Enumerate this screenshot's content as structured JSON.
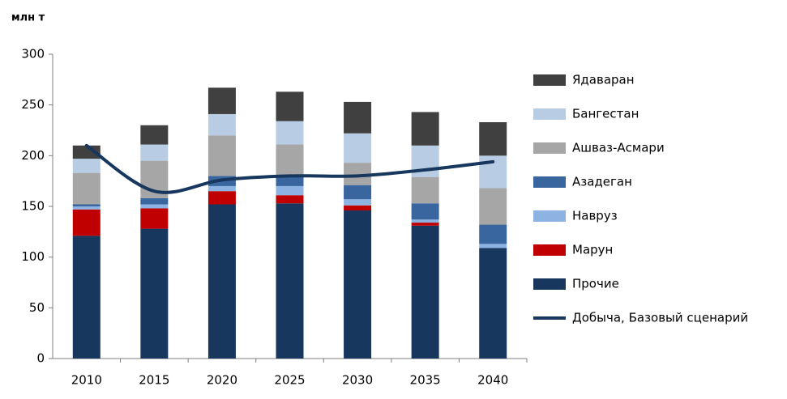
{
  "chart_data": {
    "type": "stacked-bar-line",
    "y_label": "млн т",
    "categories": [
      "2010",
      "2015",
      "2020",
      "2025",
      "2030",
      "2035",
      "2040"
    ],
    "ylim": [
      0,
      300
    ],
    "yticks": [
      0,
      50,
      100,
      150,
      200,
      250,
      300
    ],
    "series": [
      {
        "name": "Прочие",
        "color": "#17375e",
        "values": [
          121,
          128,
          152,
          153,
          146,
          131,
          109
        ]
      },
      {
        "name": "Марун",
        "color": "#c00000",
        "values": [
          26,
          20,
          13,
          8,
          5,
          3,
          0
        ]
      },
      {
        "name": "Навруз",
        "color": "#8db3e2",
        "values": [
          3,
          4,
          5,
          9,
          6,
          3,
          4
        ]
      },
      {
        "name": "Азадеган",
        "color": "#3a66a0",
        "values": [
          2,
          6,
          10,
          10,
          14,
          16,
          19
        ]
      },
      {
        "name": "Ашваз-Асмари",
        "color": "#a6a6a6",
        "values": [
          31,
          37,
          40,
          31,
          22,
          26,
          36
        ]
      },
      {
        "name": "Бангестан",
        "color": "#b8cce4",
        "values": [
          14,
          16,
          21,
          23,
          29,
          31,
          32
        ]
      },
      {
        "name": "Ядаваран",
        "color": "#404040",
        "values": [
          13,
          19,
          26,
          29,
          31,
          33,
          33
        ]
      }
    ],
    "line": {
      "name": "Добыча, Базовый сценарий",
      "color": "#17375e",
      "values": [
        210,
        165,
        176,
        180,
        180,
        186,
        194
      ]
    }
  }
}
